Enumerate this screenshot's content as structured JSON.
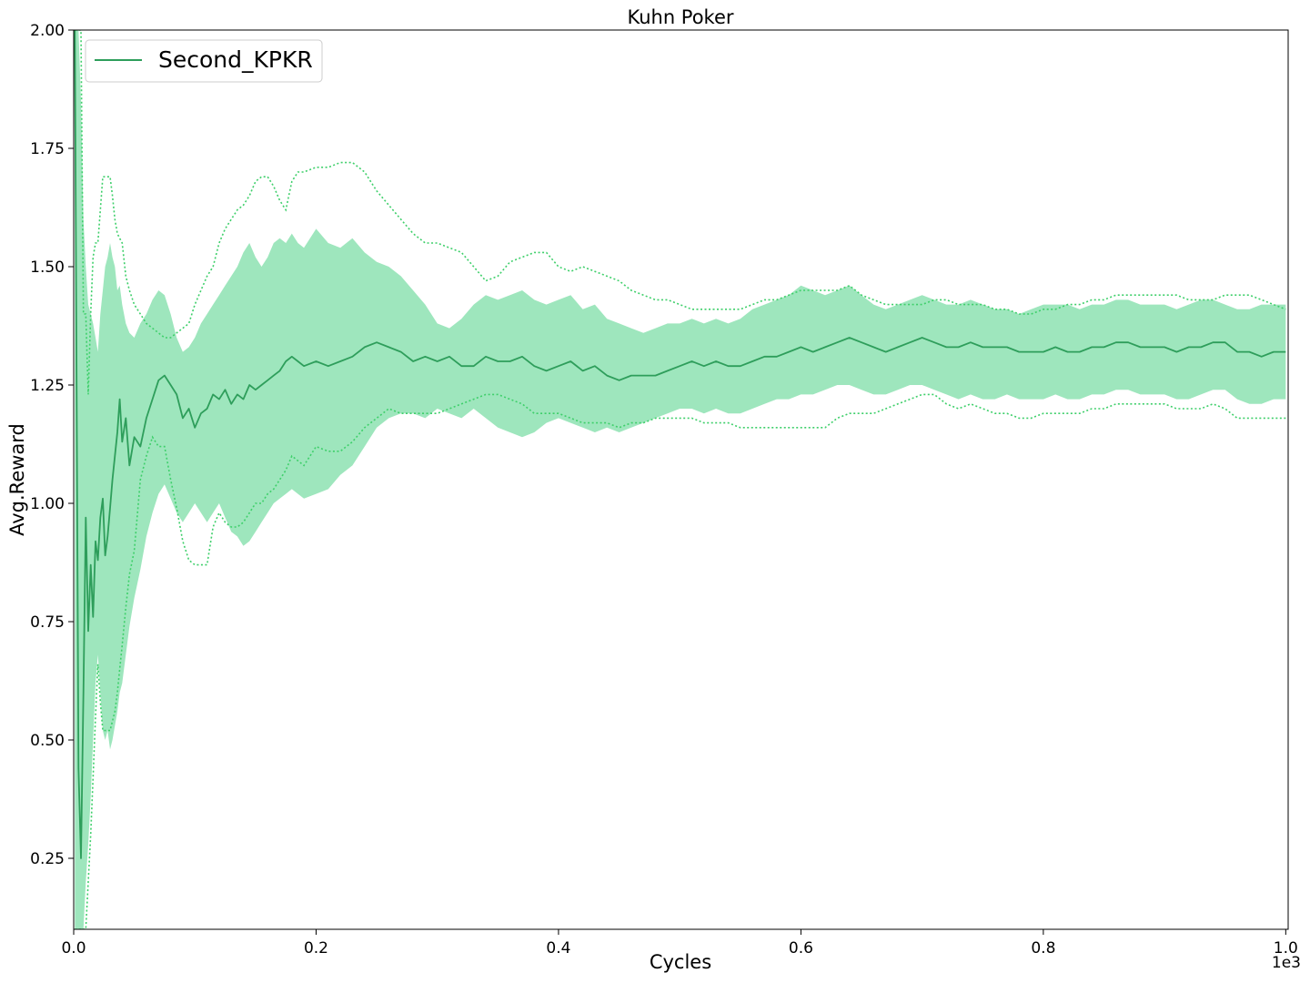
{
  "chart_data": {
    "type": "line",
    "title": "Kuhn Poker",
    "xlabel": "Cycles",
    "ylabel": "Avg.Reward",
    "x_offset_label": "1e3",
    "xlim": [
      0,
      1.002
    ],
    "ylim": [
      0.1,
      2.0
    ],
    "x_ticks": [
      "0.0",
      "0.2",
      "0.4",
      "0.6",
      "0.8",
      "1.0"
    ],
    "x_tick_values": [
      0.0,
      0.2,
      0.4,
      0.6,
      0.8,
      1.0
    ],
    "y_ticks": [
      "0.25",
      "0.50",
      "0.75",
      "1.00",
      "1.25",
      "1.50",
      "1.75",
      "2.00"
    ],
    "y_tick_values": [
      0.25,
      0.5,
      0.75,
      1.0,
      1.25,
      1.5,
      1.75,
      2.0
    ],
    "grid": false,
    "legend_position": "top-left",
    "colors": {
      "mean_line": "#2e9e5b",
      "band_fill": "#9ee6bd",
      "bound_line": "#3ecf6a"
    },
    "series": [
      {
        "name": "Second_KPKR",
        "x": [
          0.001,
          0.004,
          0.006,
          0.008,
          0.01,
          0.012,
          0.014,
          0.016,
          0.018,
          0.02,
          0.022,
          0.024,
          0.026,
          0.028,
          0.03,
          0.032,
          0.034,
          0.036,
          0.038,
          0.04,
          0.043,
          0.046,
          0.05,
          0.055,
          0.06,
          0.065,
          0.07,
          0.075,
          0.08,
          0.085,
          0.09,
          0.095,
          0.1,
          0.105,
          0.11,
          0.115,
          0.12,
          0.125,
          0.13,
          0.135,
          0.14,
          0.145,
          0.15,
          0.155,
          0.16,
          0.165,
          0.17,
          0.175,
          0.18,
          0.185,
          0.19,
          0.2,
          0.21,
          0.22,
          0.23,
          0.24,
          0.25,
          0.26,
          0.27,
          0.28,
          0.29,
          0.3,
          0.31,
          0.32,
          0.33,
          0.34,
          0.35,
          0.36,
          0.37,
          0.38,
          0.39,
          0.4,
          0.41,
          0.42,
          0.43,
          0.44,
          0.45,
          0.46,
          0.47,
          0.48,
          0.49,
          0.5,
          0.51,
          0.52,
          0.53,
          0.54,
          0.55,
          0.56,
          0.57,
          0.58,
          0.59,
          0.6,
          0.61,
          0.62,
          0.63,
          0.64,
          0.65,
          0.66,
          0.67,
          0.68,
          0.69,
          0.7,
          0.71,
          0.72,
          0.73,
          0.74,
          0.75,
          0.76,
          0.77,
          0.78,
          0.79,
          0.8,
          0.81,
          0.82,
          0.83,
          0.84,
          0.85,
          0.86,
          0.87,
          0.88,
          0.89,
          0.9,
          0.91,
          0.92,
          0.93,
          0.94,
          0.95,
          0.96,
          0.97,
          0.98,
          0.99,
          1.0
        ],
        "mean": [
          2.0,
          0.44,
          0.25,
          0.6,
          0.97,
          0.73,
          0.87,
          0.76,
          0.92,
          0.88,
          0.97,
          1.01,
          0.89,
          0.93,
          0.99,
          1.05,
          1.1,
          1.15,
          1.22,
          1.13,
          1.18,
          1.08,
          1.14,
          1.12,
          1.18,
          1.22,
          1.26,
          1.27,
          1.25,
          1.23,
          1.18,
          1.2,
          1.16,
          1.19,
          1.2,
          1.23,
          1.22,
          1.24,
          1.21,
          1.23,
          1.22,
          1.25,
          1.24,
          1.25,
          1.26,
          1.27,
          1.28,
          1.3,
          1.31,
          1.3,
          1.29,
          1.3,
          1.29,
          1.3,
          1.31,
          1.33,
          1.34,
          1.33,
          1.32,
          1.3,
          1.31,
          1.3,
          1.31,
          1.29,
          1.29,
          1.31,
          1.3,
          1.3,
          1.31,
          1.29,
          1.28,
          1.29,
          1.3,
          1.28,
          1.29,
          1.27,
          1.26,
          1.27,
          1.27,
          1.27,
          1.28,
          1.29,
          1.3,
          1.29,
          1.3,
          1.29,
          1.29,
          1.3,
          1.31,
          1.31,
          1.32,
          1.33,
          1.32,
          1.33,
          1.34,
          1.35,
          1.34,
          1.33,
          1.32,
          1.33,
          1.34,
          1.35,
          1.34,
          1.33,
          1.33,
          1.34,
          1.33,
          1.33,
          1.33,
          1.32,
          1.32,
          1.32,
          1.33,
          1.32,
          1.32,
          1.33,
          1.33,
          1.34,
          1.34,
          1.33,
          1.33,
          1.33,
          1.32,
          1.33,
          1.33,
          1.34,
          1.34,
          1.32,
          1.32,
          1.31,
          1.32,
          1.32
        ],
        "band_low": [
          0.1,
          0.1,
          0.1,
          0.1,
          0.2,
          0.28,
          0.38,
          0.5,
          0.62,
          0.68,
          0.6,
          0.52,
          0.5,
          0.52,
          0.48,
          0.5,
          0.53,
          0.56,
          0.6,
          0.62,
          0.68,
          0.74,
          0.8,
          0.86,
          0.93,
          0.98,
          1.02,
          1.04,
          1.01,
          0.98,
          0.96,
          0.98,
          1.0,
          0.98,
          0.96,
          0.98,
          1.0,
          0.97,
          0.94,
          0.93,
          0.91,
          0.92,
          0.94,
          0.96,
          0.98,
          1.0,
          1.01,
          1.02,
          1.03,
          1.02,
          1.01,
          1.02,
          1.03,
          1.06,
          1.08,
          1.12,
          1.16,
          1.18,
          1.19,
          1.19,
          1.18,
          1.2,
          1.19,
          1.18,
          1.2,
          1.18,
          1.16,
          1.15,
          1.14,
          1.15,
          1.17,
          1.18,
          1.17,
          1.16,
          1.15,
          1.16,
          1.15,
          1.16,
          1.17,
          1.18,
          1.19,
          1.2,
          1.2,
          1.19,
          1.2,
          1.19,
          1.19,
          1.2,
          1.21,
          1.22,
          1.22,
          1.23,
          1.23,
          1.24,
          1.25,
          1.25,
          1.24,
          1.23,
          1.23,
          1.24,
          1.25,
          1.25,
          1.24,
          1.23,
          1.22,
          1.23,
          1.22,
          1.22,
          1.23,
          1.22,
          1.22,
          1.22,
          1.23,
          1.22,
          1.22,
          1.23,
          1.23,
          1.24,
          1.24,
          1.23,
          1.23,
          1.23,
          1.22,
          1.22,
          1.23,
          1.24,
          1.24,
          1.22,
          1.21,
          1.21,
          1.22,
          1.22
        ],
        "band_high": [
          2.0,
          2.0,
          1.85,
          1.6,
          1.5,
          1.42,
          1.4,
          1.38,
          1.35,
          1.32,
          1.4,
          1.45,
          1.5,
          1.52,
          1.55,
          1.52,
          1.5,
          1.45,
          1.46,
          1.42,
          1.38,
          1.36,
          1.35,
          1.38,
          1.4,
          1.43,
          1.45,
          1.44,
          1.4,
          1.35,
          1.32,
          1.33,
          1.35,
          1.38,
          1.4,
          1.42,
          1.44,
          1.46,
          1.48,
          1.5,
          1.53,
          1.55,
          1.52,
          1.5,
          1.52,
          1.55,
          1.56,
          1.55,
          1.57,
          1.55,
          1.54,
          1.58,
          1.55,
          1.54,
          1.56,
          1.53,
          1.51,
          1.5,
          1.48,
          1.45,
          1.42,
          1.38,
          1.37,
          1.39,
          1.42,
          1.44,
          1.43,
          1.44,
          1.45,
          1.43,
          1.42,
          1.43,
          1.44,
          1.41,
          1.42,
          1.39,
          1.38,
          1.37,
          1.36,
          1.37,
          1.38,
          1.38,
          1.39,
          1.38,
          1.39,
          1.38,
          1.39,
          1.41,
          1.42,
          1.43,
          1.44,
          1.46,
          1.45,
          1.44,
          1.45,
          1.46,
          1.44,
          1.42,
          1.41,
          1.42,
          1.43,
          1.44,
          1.43,
          1.42,
          1.42,
          1.43,
          1.42,
          1.41,
          1.41,
          1.4,
          1.41,
          1.42,
          1.42,
          1.42,
          1.41,
          1.42,
          1.42,
          1.43,
          1.43,
          1.42,
          1.42,
          1.42,
          1.41,
          1.42,
          1.43,
          1.43,
          1.42,
          1.41,
          1.41,
          1.42,
          1.42,
          1.42
        ],
        "bound_low": [
          0.1,
          0.1,
          0.1,
          0.1,
          0.1,
          0.2,
          0.3,
          0.42,
          0.55,
          0.66,
          0.58,
          0.52,
          0.52,
          0.52,
          0.52,
          0.54,
          0.56,
          0.6,
          0.65,
          0.7,
          0.78,
          0.85,
          0.9,
          1.05,
          1.1,
          1.14,
          1.12,
          1.12,
          1.05,
          0.99,
          0.92,
          0.88,
          0.87,
          0.87,
          0.87,
          0.95,
          0.98,
          0.96,
          0.95,
          0.95,
          0.96,
          0.98,
          1.0,
          1.0,
          1.02,
          1.03,
          1.05,
          1.07,
          1.1,
          1.09,
          1.08,
          1.12,
          1.11,
          1.11,
          1.13,
          1.16,
          1.18,
          1.2,
          1.19,
          1.19,
          1.19,
          1.19,
          1.2,
          1.21,
          1.22,
          1.23,
          1.23,
          1.22,
          1.21,
          1.19,
          1.19,
          1.19,
          1.18,
          1.17,
          1.17,
          1.17,
          1.16,
          1.17,
          1.17,
          1.18,
          1.18,
          1.18,
          1.18,
          1.17,
          1.17,
          1.17,
          1.16,
          1.16,
          1.16,
          1.16,
          1.16,
          1.16,
          1.16,
          1.16,
          1.18,
          1.19,
          1.19,
          1.19,
          1.2,
          1.21,
          1.22,
          1.23,
          1.23,
          1.21,
          1.2,
          1.21,
          1.2,
          1.19,
          1.19,
          1.18,
          1.18,
          1.19,
          1.19,
          1.19,
          1.19,
          1.2,
          1.2,
          1.21,
          1.21,
          1.21,
          1.21,
          1.21,
          1.2,
          1.2,
          1.2,
          1.21,
          1.2,
          1.18,
          1.18,
          1.18,
          1.18,
          1.18
        ],
        "bound_high": [
          2.0,
          2.0,
          2.0,
          1.4,
          1.4,
          1.23,
          1.4,
          1.52,
          1.55,
          1.55,
          1.62,
          1.69,
          1.69,
          1.69,
          1.69,
          1.65,
          1.6,
          1.57,
          1.56,
          1.55,
          1.48,
          1.45,
          1.42,
          1.4,
          1.38,
          1.37,
          1.36,
          1.35,
          1.35,
          1.36,
          1.37,
          1.38,
          1.42,
          1.45,
          1.48,
          1.5,
          1.55,
          1.58,
          1.6,
          1.62,
          1.63,
          1.65,
          1.68,
          1.69,
          1.69,
          1.67,
          1.64,
          1.62,
          1.68,
          1.7,
          1.7,
          1.71,
          1.71,
          1.72,
          1.72,
          1.7,
          1.66,
          1.63,
          1.6,
          1.57,
          1.55,
          1.55,
          1.54,
          1.53,
          1.5,
          1.47,
          1.48,
          1.51,
          1.52,
          1.53,
          1.53,
          1.5,
          1.49,
          1.5,
          1.49,
          1.48,
          1.47,
          1.45,
          1.44,
          1.43,
          1.43,
          1.42,
          1.41,
          1.41,
          1.41,
          1.41,
          1.41,
          1.42,
          1.43,
          1.43,
          1.44,
          1.45,
          1.45,
          1.45,
          1.45,
          1.46,
          1.44,
          1.43,
          1.42,
          1.42,
          1.42,
          1.42,
          1.43,
          1.43,
          1.42,
          1.42,
          1.42,
          1.41,
          1.41,
          1.4,
          1.4,
          1.41,
          1.41,
          1.42,
          1.42,
          1.43,
          1.43,
          1.44,
          1.44,
          1.44,
          1.44,
          1.44,
          1.44,
          1.43,
          1.43,
          1.43,
          1.44,
          1.44,
          1.44,
          1.43,
          1.42,
          1.41
        ]
      }
    ]
  }
}
